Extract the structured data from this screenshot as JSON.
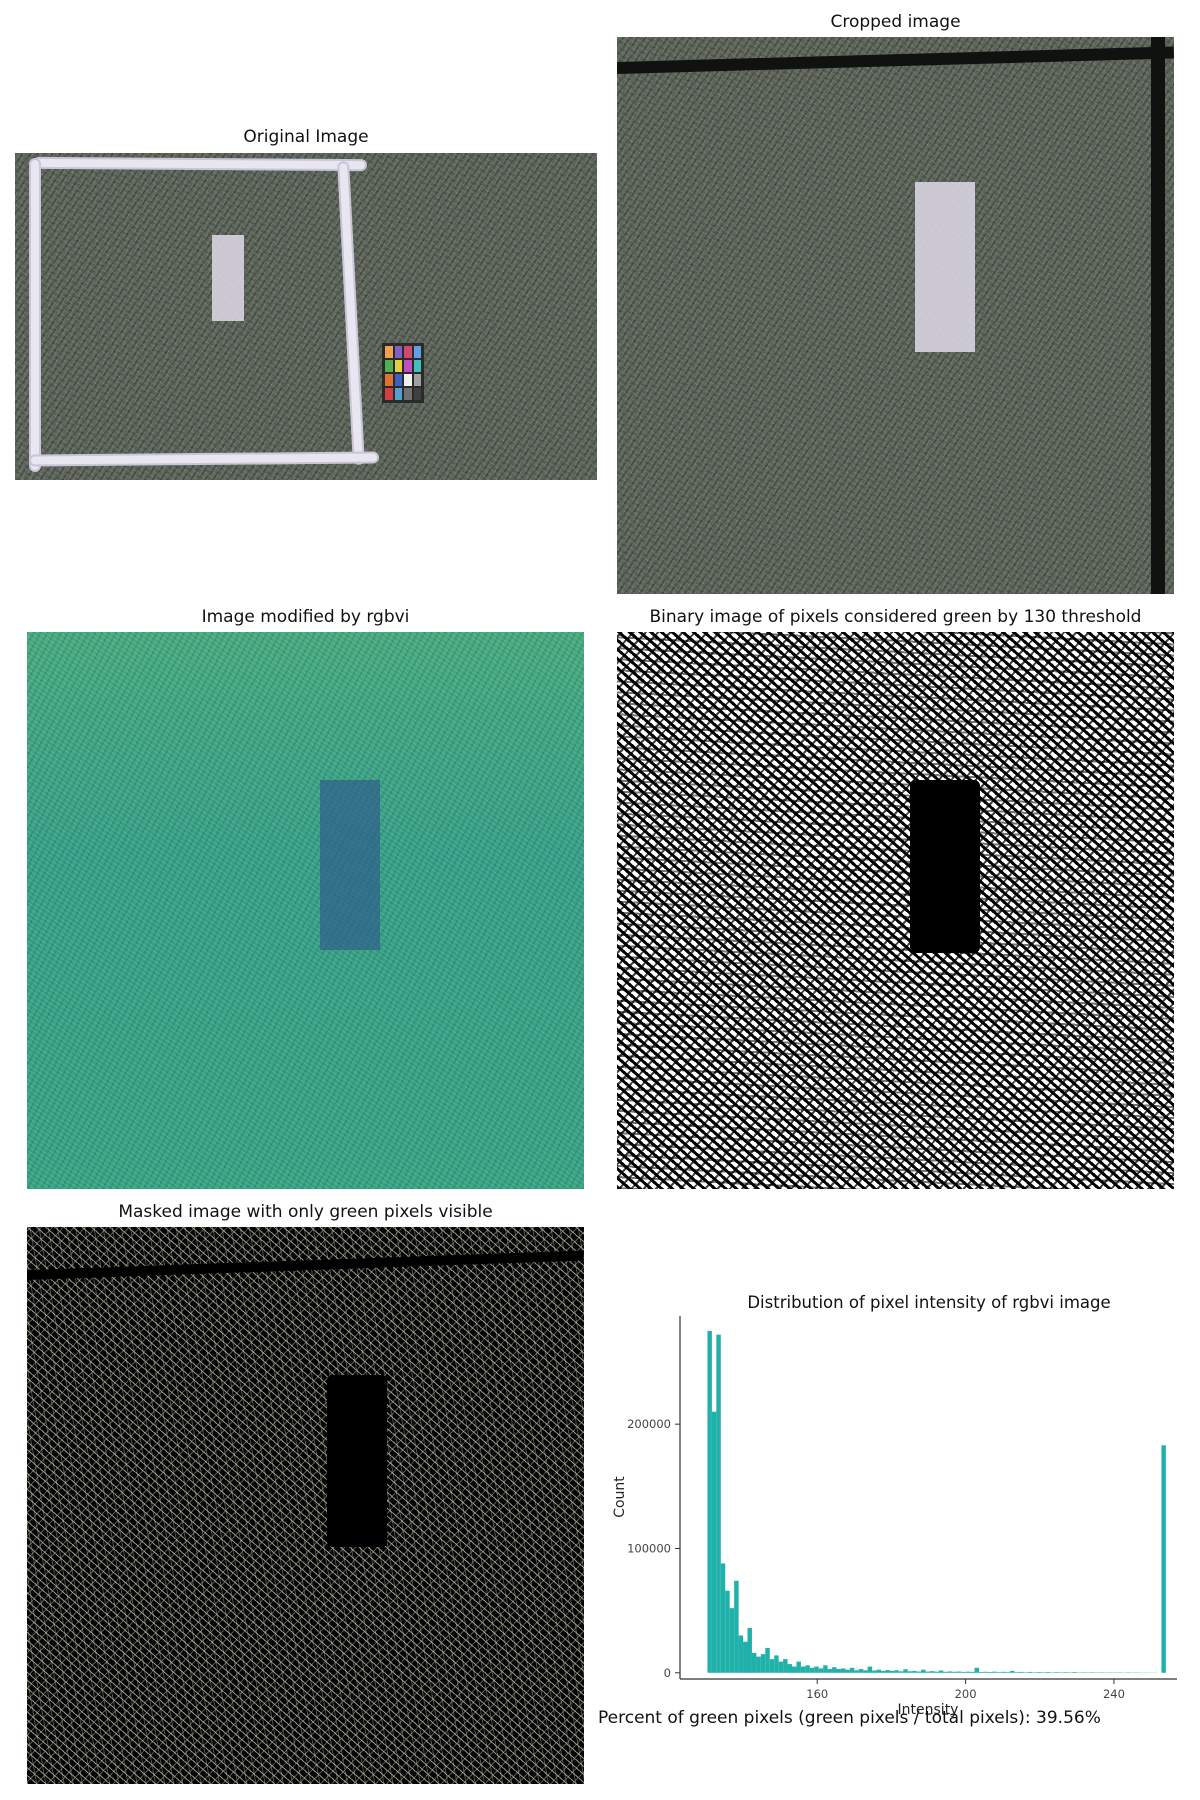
{
  "titles": {
    "original": "Original Image",
    "cropped": "Cropped image",
    "rgbvi": "Image modified by rgbvi",
    "binary": "Binary image of pixels considered green by 130 threshold",
    "masked": "Masked image with only green pixels visible"
  },
  "footnote": "Percent of green pixels (green pixels / total pixels): 39.56%",
  "colors": {
    "bar": "#20b2aa",
    "axis": "#333333"
  },
  "chart_data": {
    "type": "bar",
    "title": "Distribution of pixel intensity of rgbvi image",
    "xlabel": "Intensity",
    "ylabel": "Count",
    "xlim": [
      123,
      257
    ],
    "ylim": [
      -5000,
      287000
    ],
    "xticks": [
      160,
      200,
      240
    ],
    "yticks": [
      0,
      100000,
      200000
    ],
    "bin_width": 1.2,
    "bins": [
      {
        "x": 131.0,
        "y": 275000
      },
      {
        "x": 132.2,
        "y": 210000
      },
      {
        "x": 133.4,
        "y": 272000
      },
      {
        "x": 134.6,
        "y": 88000
      },
      {
        "x": 135.8,
        "y": 66000
      },
      {
        "x": 137.0,
        "y": 52000
      },
      {
        "x": 138.2,
        "y": 74000
      },
      {
        "x": 139.4,
        "y": 30000
      },
      {
        "x": 140.6,
        "y": 25000
      },
      {
        "x": 141.8,
        "y": 36000
      },
      {
        "x": 143.0,
        "y": 16000
      },
      {
        "x": 144.2,
        "y": 13000
      },
      {
        "x": 145.4,
        "y": 15000
      },
      {
        "x": 146.6,
        "y": 20000
      },
      {
        "x": 147.8,
        "y": 11000
      },
      {
        "x": 149.0,
        "y": 14000
      },
      {
        "x": 150.2,
        "y": 9000
      },
      {
        "x": 151.4,
        "y": 11000
      },
      {
        "x": 152.6,
        "y": 7000
      },
      {
        "x": 153.8,
        "y": 5000
      },
      {
        "x": 155.0,
        "y": 9000
      },
      {
        "x": 156.2,
        "y": 5000
      },
      {
        "x": 157.4,
        "y": 6000
      },
      {
        "x": 158.6,
        "y": 4000
      },
      {
        "x": 159.8,
        "y": 5000
      },
      {
        "x": 161.0,
        "y": 3500
      },
      {
        "x": 162.2,
        "y": 6000
      },
      {
        "x": 163.4,
        "y": 3000
      },
      {
        "x": 164.6,
        "y": 4500
      },
      {
        "x": 165.8,
        "y": 3000
      },
      {
        "x": 167.0,
        "y": 3500
      },
      {
        "x": 168.2,
        "y": 2500
      },
      {
        "x": 169.4,
        "y": 4000
      },
      {
        "x": 170.6,
        "y": 2000
      },
      {
        "x": 171.8,
        "y": 3000
      },
      {
        "x": 173.0,
        "y": 2000
      },
      {
        "x": 174.2,
        "y": 5000
      },
      {
        "x": 175.4,
        "y": 1800
      },
      {
        "x": 176.6,
        "y": 2500
      },
      {
        "x": 177.8,
        "y": 1500
      },
      {
        "x": 179.0,
        "y": 2200
      },
      {
        "x": 180.2,
        "y": 1500
      },
      {
        "x": 181.4,
        "y": 2000
      },
      {
        "x": 182.6,
        "y": 1200
      },
      {
        "x": 183.8,
        "y": 2800
      },
      {
        "x": 185.0,
        "y": 1200
      },
      {
        "x": 186.2,
        "y": 1500
      },
      {
        "x": 187.4,
        "y": 1000
      },
      {
        "x": 188.6,
        "y": 2500
      },
      {
        "x": 189.8,
        "y": 1000
      },
      {
        "x": 191.0,
        "y": 1300
      },
      {
        "x": 192.2,
        "y": 900
      },
      {
        "x": 193.4,
        "y": 1800
      },
      {
        "x": 194.6,
        "y": 800
      },
      {
        "x": 195.8,
        "y": 1100
      },
      {
        "x": 197.0,
        "y": 800
      },
      {
        "x": 198.2,
        "y": 1000
      },
      {
        "x": 199.4,
        "y": 700
      },
      {
        "x": 200.6,
        "y": 900
      },
      {
        "x": 201.8,
        "y": 700
      },
      {
        "x": 203.0,
        "y": 4000
      },
      {
        "x": 204.2,
        "y": 600
      },
      {
        "x": 205.4,
        "y": 800
      },
      {
        "x": 206.6,
        "y": 600
      },
      {
        "x": 207.8,
        "y": 900
      },
      {
        "x": 209.0,
        "y": 500
      },
      {
        "x": 210.2,
        "y": 800
      },
      {
        "x": 211.4,
        "y": 500
      },
      {
        "x": 212.6,
        "y": 1500
      },
      {
        "x": 213.8,
        "y": 500
      },
      {
        "x": 215.0,
        "y": 700
      },
      {
        "x": 216.2,
        "y": 400
      },
      {
        "x": 217.4,
        "y": 700
      },
      {
        "x": 218.6,
        "y": 400
      },
      {
        "x": 219.8,
        "y": 600
      },
      {
        "x": 221.0,
        "y": 400
      },
      {
        "x": 222.2,
        "y": 600
      },
      {
        "x": 223.4,
        "y": 350
      },
      {
        "x": 224.6,
        "y": 500
      },
      {
        "x": 225.8,
        "y": 350
      },
      {
        "x": 227.0,
        "y": 500
      },
      {
        "x": 228.2,
        "y": 300
      },
      {
        "x": 229.4,
        "y": 600
      },
      {
        "x": 230.6,
        "y": 300
      },
      {
        "x": 231.8,
        "y": 400
      },
      {
        "x": 233.0,
        "y": 300
      },
      {
        "x": 234.2,
        "y": 400
      },
      {
        "x": 235.4,
        "y": 250
      },
      {
        "x": 236.6,
        "y": 350
      },
      {
        "x": 237.8,
        "y": 250
      },
      {
        "x": 239.0,
        "y": 300
      },
      {
        "x": 240.2,
        "y": 250
      },
      {
        "x": 241.4,
        "y": 300
      },
      {
        "x": 242.6,
        "y": 200
      },
      {
        "x": 243.8,
        "y": 300
      },
      {
        "x": 245.0,
        "y": 200
      },
      {
        "x": 246.2,
        "y": 250
      },
      {
        "x": 247.4,
        "y": 150
      },
      {
        "x": 248.6,
        "y": 200
      },
      {
        "x": 249.8,
        "y": 150
      },
      {
        "x": 251.0,
        "y": 150
      },
      {
        "x": 253.4,
        "y": 183000
      }
    ]
  }
}
